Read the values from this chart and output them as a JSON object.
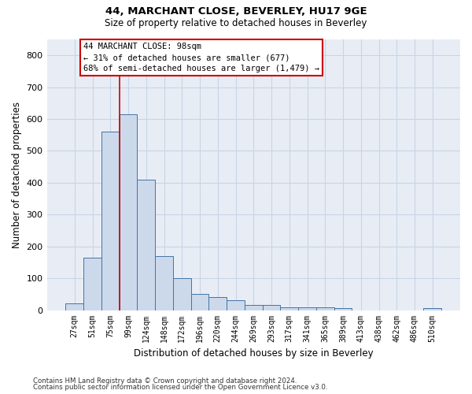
{
  "title1": "44, MARCHANT CLOSE, BEVERLEY, HU17 9GE",
  "title2": "Size of property relative to detached houses in Beverley",
  "xlabel": "Distribution of detached houses by size in Beverley",
  "ylabel": "Number of detached properties",
  "categories": [
    "27sqm",
    "51sqm",
    "75sqm",
    "99sqm",
    "124sqm",
    "148sqm",
    "172sqm",
    "196sqm",
    "220sqm",
    "244sqm",
    "269sqm",
    "293sqm",
    "317sqm",
    "341sqm",
    "365sqm",
    "389sqm",
    "413sqm",
    "438sqm",
    "462sqm",
    "486sqm",
    "510sqm"
  ],
  "values": [
    20,
    165,
    560,
    615,
    410,
    170,
    100,
    52,
    42,
    32,
    15,
    15,
    8,
    8,
    8,
    6,
    0,
    0,
    0,
    0,
    7
  ],
  "bar_color": "#ccd9eb",
  "bar_edge_color": "#4472a8",
  "marker_label": "44 MARCHANT CLOSE: 98sqm",
  "annotation_line1": "← 31% of detached houses are smaller (677)",
  "annotation_line2": "68% of semi-detached houses are larger (1,479) →",
  "annotation_box_color": "white",
  "annotation_box_edge": "#cc0000",
  "vline_color": "#cc0000",
  "vline_x": 3,
  "footnote1": "Contains HM Land Registry data © Crown copyright and database right 2024.",
  "footnote2": "Contains public sector information licensed under the Open Government Licence v3.0.",
  "ylim": [
    0,
    850
  ],
  "yticks": [
    0,
    100,
    200,
    300,
    400,
    500,
    600,
    700,
    800
  ],
  "grid_color": "#c8d4e6",
  "background_color": "#e8edf5"
}
